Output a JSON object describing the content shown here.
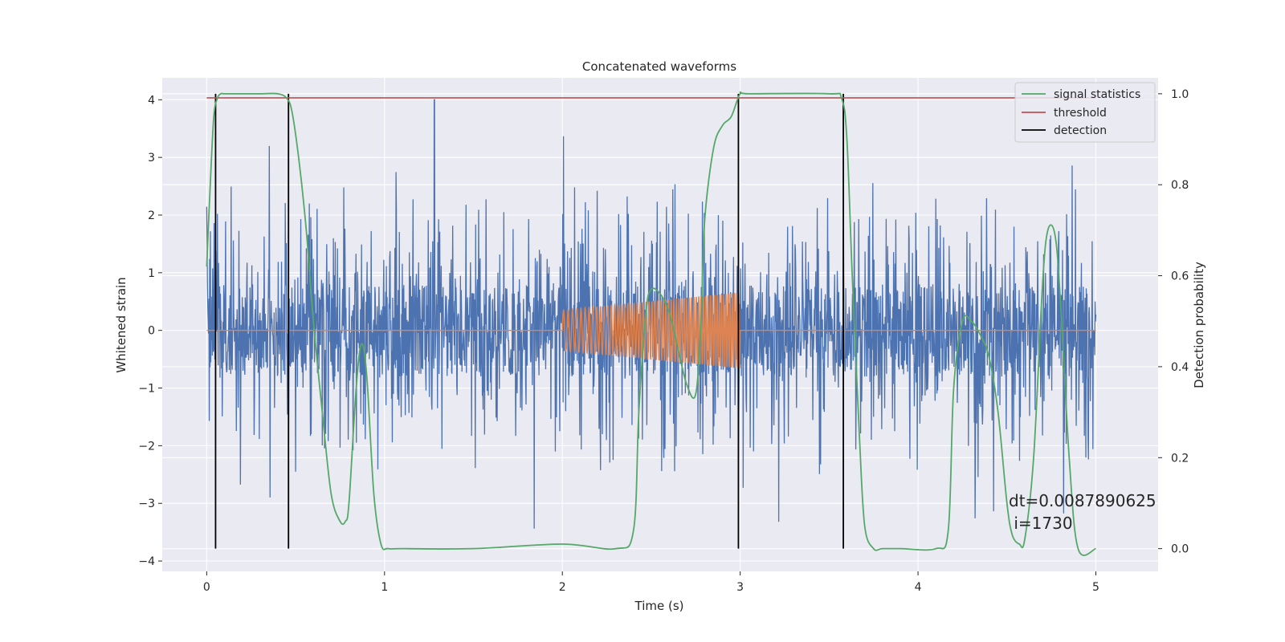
{
  "chart_data": {
    "type": "line",
    "title": "Concatenated waveforms",
    "xlabel": "Time (s)",
    "ylabel": "Whitened strain",
    "y2label": "Detection probability",
    "xlim": [
      -0.25,
      5.35
    ],
    "ylim": [
      -4.18,
      4.38
    ],
    "y2lim": [
      -0.05,
      1.035
    ],
    "xticks": [
      0,
      1,
      2,
      3,
      4,
      5
    ],
    "yticks": [
      -4,
      -3,
      -2,
      -1,
      0,
      1,
      2,
      3,
      4
    ],
    "y2ticks": [
      0.0,
      0.2,
      0.4,
      0.6,
      0.8,
      1.0
    ],
    "xtick_labels": [
      "0",
      "1",
      "2",
      "3",
      "4",
      "5"
    ],
    "ytick_labels": [
      "−4",
      "−3",
      "−2",
      "−1",
      "0",
      "1",
      "2",
      "3",
      "4"
    ],
    "y2tick_labels": [
      "0.0",
      "0.2",
      "0.4",
      "0.6",
      "0.8",
      "1.0"
    ],
    "grid": true,
    "legend_position": "top-right",
    "colors": {
      "noise": "#4c72b0",
      "template": "#dd8452",
      "signal_statistics": "#55a868",
      "threshold": "#c44e52",
      "detection": "#000000",
      "axes_bg": "#eaeaf2",
      "grid": "#ffffff"
    },
    "series": [
      {
        "name": "signal statistics",
        "axis": "right",
        "x": [
          0,
          0.02,
          0.04,
          0.06,
          0.08,
          0.1,
          0.2,
          0.3,
          0.4,
          0.45,
          0.48,
          0.52,
          0.56,
          0.6,
          0.65,
          0.7,
          0.75,
          0.78,
          0.8,
          0.84,
          0.87,
          0.9,
          0.94,
          0.98,
          1.02,
          1.1,
          1.5,
          2.0,
          2.3,
          2.4,
          2.43,
          2.47,
          2.5,
          2.55,
          2.6,
          2.65,
          2.7,
          2.75,
          2.78,
          2.8,
          2.85,
          2.9,
          2.95,
          3.0,
          3.05,
          3.5,
          3.57,
          3.6,
          3.63,
          3.67,
          3.7,
          3.75,
          3.8,
          3.9,
          4.1,
          4.17,
          4.2,
          4.25,
          4.3,
          4.35,
          4.4,
          4.45,
          4.5,
          4.53,
          4.57,
          4.6,
          4.65,
          4.7,
          4.73,
          4.77,
          4.8,
          4.85,
          4.9,
          5.0
        ],
        "values": [
          0.62,
          0.8,
          0.95,
          0.99,
          1.0,
          1.0,
          1.0,
          1.0,
          1.0,
          0.99,
          0.96,
          0.85,
          0.7,
          0.5,
          0.3,
          0.12,
          0.06,
          0.06,
          0.1,
          0.35,
          0.45,
          0.38,
          0.12,
          0.01,
          0.0,
          0.0,
          0.0,
          0.01,
          0.0,
          0.04,
          0.3,
          0.52,
          0.57,
          0.56,
          0.52,
          0.44,
          0.36,
          0.34,
          0.5,
          0.72,
          0.88,
          0.93,
          0.95,
          1.0,
          1.0,
          1.0,
          0.99,
          0.9,
          0.6,
          0.25,
          0.05,
          0.0,
          0.0,
          0.0,
          0.0,
          0.04,
          0.35,
          0.5,
          0.5,
          0.47,
          0.42,
          0.3,
          0.1,
          0.03,
          0.01,
          0.02,
          0.2,
          0.58,
          0.7,
          0.69,
          0.55,
          0.2,
          0.0,
          0.0
        ]
      },
      {
        "name": "threshold",
        "axis": "right",
        "x": [
          0,
          5
        ],
        "values": [
          0.991,
          0.991
        ]
      },
      {
        "name": "detection",
        "axis": "right",
        "x": [
          0.05,
          0.46,
          2.99,
          3.58
        ],
        "y_range": [
          0.0,
          1.0
        ]
      }
    ],
    "noise_envelope": {
      "x": [
        0,
        5
      ],
      "core_amplitude": 0.8,
      "peak_amplitude": 4.0,
      "spike_max_x": 1.28
    },
    "template_chirp": {
      "x_range": [
        2.0,
        3.0
      ],
      "amplitude_range": [
        0.35,
        0.66
      ],
      "amplitude_units": "whitened strain"
    },
    "annotation": {
      "line1": "dt=0.0087890625",
      "line2": " i=1730"
    }
  }
}
